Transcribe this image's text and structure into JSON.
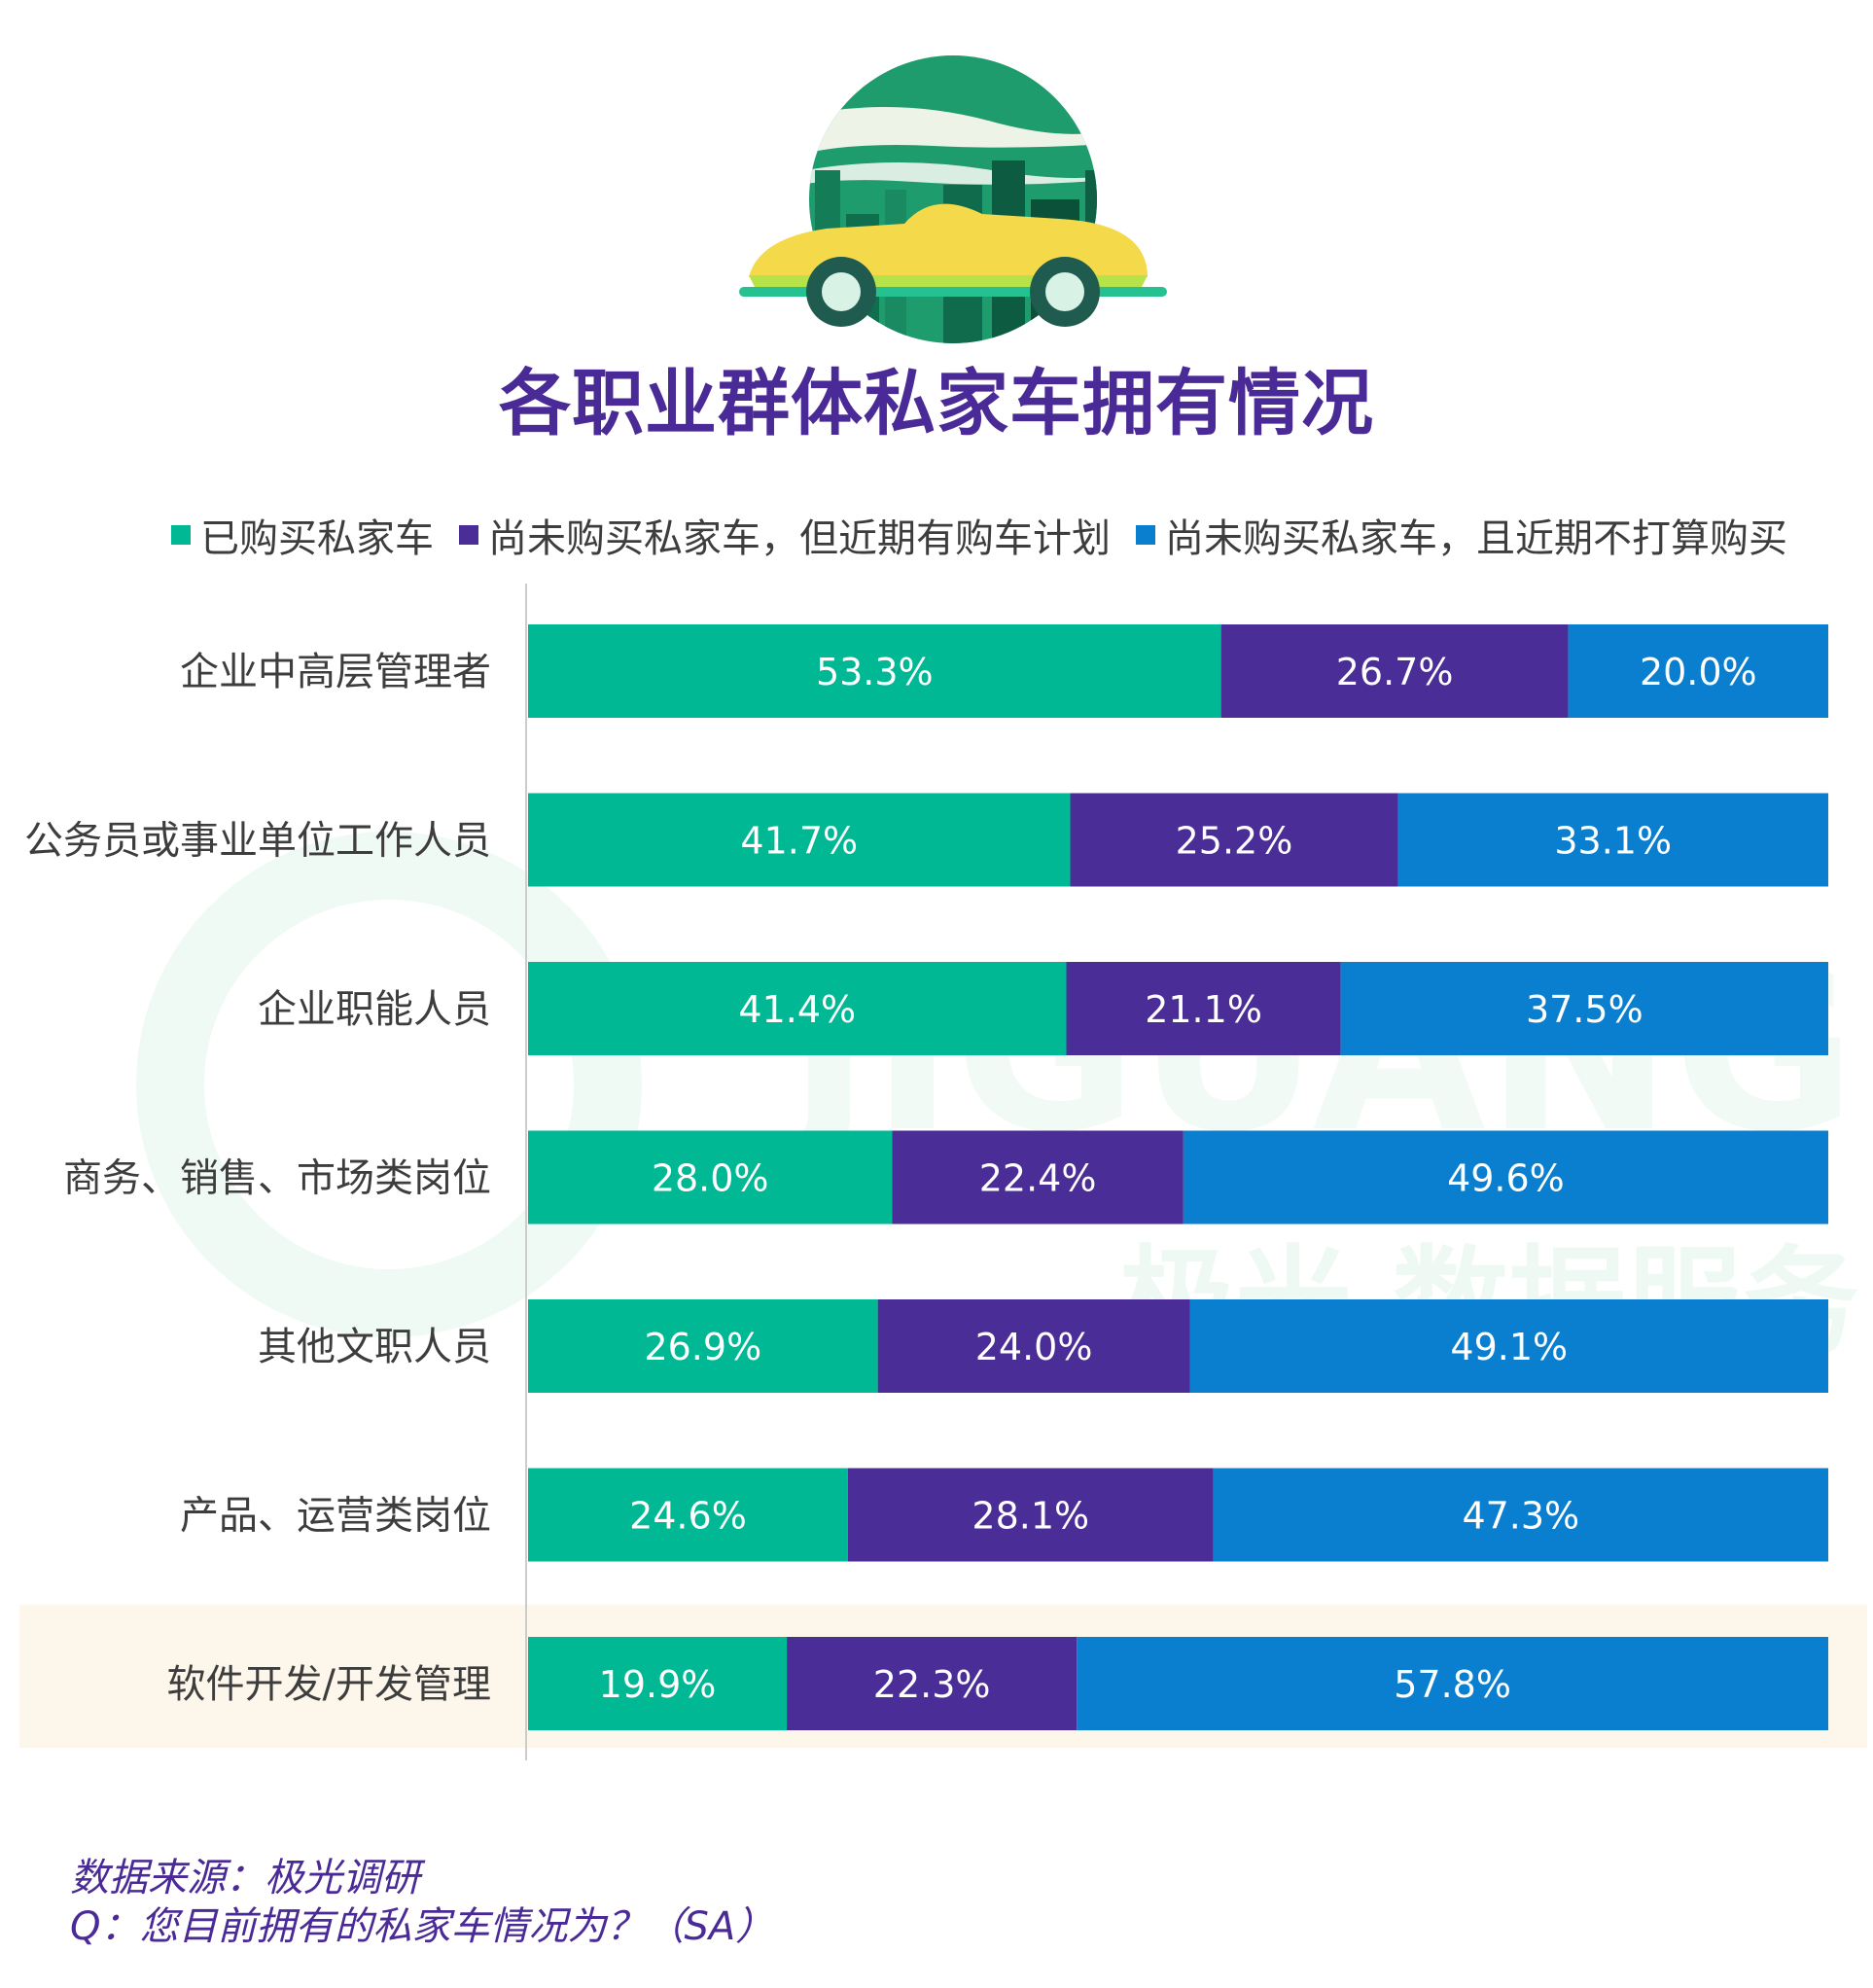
{
  "title": "各职业群体私家车拥有情况",
  "colors": {
    "bought": "#00b894",
    "planning": "#4a2d96",
    "not_planning": "#0a7fcf"
  },
  "legend": [
    {
      "label": "已购买私家车",
      "color": "#00b894"
    },
    {
      "label": "尚未购买私家车，但近期有购车计划",
      "color": "#4a2d96"
    },
    {
      "label": "尚未购买私家车，且近期不打算购买",
      "color": "#0a7fcf"
    }
  ],
  "watermark": {
    "latin": "JIGUANG",
    "chinese": "极光 数据服务"
  },
  "chart_data": {
    "type": "bar",
    "orientation": "horizontal",
    "stacked": true,
    "title": "各职业群体私家车拥有情况",
    "xlim": [
      0,
      100
    ],
    "grid": false,
    "legend_position": "top",
    "categories": [
      "企业中高层管理者",
      "公务员或事业单位工作人员",
      "企业职能人员",
      "商务、销售、市场类岗位",
      "其他文职人员",
      "产品、运营类岗位",
      "软件开发/开发管理"
    ],
    "highlighted_category": "软件开发/开发管理",
    "series": [
      {
        "name": "已购买私家车",
        "color": "#00b894",
        "values": [
          53.3,
          41.7,
          41.4,
          28.0,
          26.9,
          24.6,
          19.9
        ],
        "labels": [
          "53.3%",
          "41.7%",
          "41.4%",
          "28.0%",
          "26.9%",
          "24.6%",
          "19.9%"
        ]
      },
      {
        "name": "尚未购买私家车，但近期有购车计划",
        "color": "#4a2d96",
        "values": [
          26.7,
          25.2,
          21.1,
          22.4,
          24.0,
          28.1,
          22.3
        ],
        "labels": [
          "26.7%",
          "25.2%",
          "21.1%",
          "22.4%",
          "24.0%",
          "28.1%",
          "22.3%"
        ]
      },
      {
        "name": "尚未购买私家车，且近期不打算购买",
        "color": "#0a7fcf",
        "values": [
          20.0,
          33.1,
          37.5,
          49.6,
          49.1,
          47.3,
          57.8
        ],
        "labels": [
          "20.0%",
          "33.1%",
          "37.5%",
          "49.6%",
          "49.1%",
          "47.3%",
          "57.8%"
        ]
      }
    ]
  },
  "source": {
    "line1": "数据来源：极光调研",
    "line2": "Q：您目前拥有的私家车情况为？（SA）"
  }
}
